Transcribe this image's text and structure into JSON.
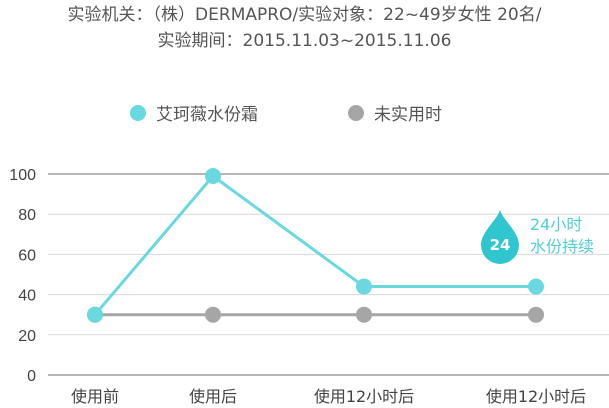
{
  "header": {
    "line1": "实验机关：（株）DERMAPRO/实验对象：22~49岁女性 20名/",
    "line2": "实验期间：2015.11.03~2015.11.06"
  },
  "callout": {
    "badge": "24",
    "line1": "24小时",
    "line2": "水份持续"
  },
  "colors": {
    "series1": "#6ad8df",
    "series2": "#a6a6a6",
    "callout": "#4fcfd8",
    "drop": "#2fc6cf"
  },
  "chart_data": {
    "type": "line",
    "categories": [
      "使用前",
      "使用后",
      "使用12小时后",
      "使用12小时后"
    ],
    "series": [
      {
        "name": "艾珂薇水份霜",
        "values": [
          30,
          99,
          44,
          44
        ]
      },
      {
        "name": "未实用时",
        "values": [
          30,
          30,
          30,
          30
        ]
      }
    ],
    "yticks": [
      0,
      20,
      40,
      60,
      80,
      100
    ],
    "ylim": [
      0,
      100
    ],
    "legend": "top",
    "grid": true
  }
}
